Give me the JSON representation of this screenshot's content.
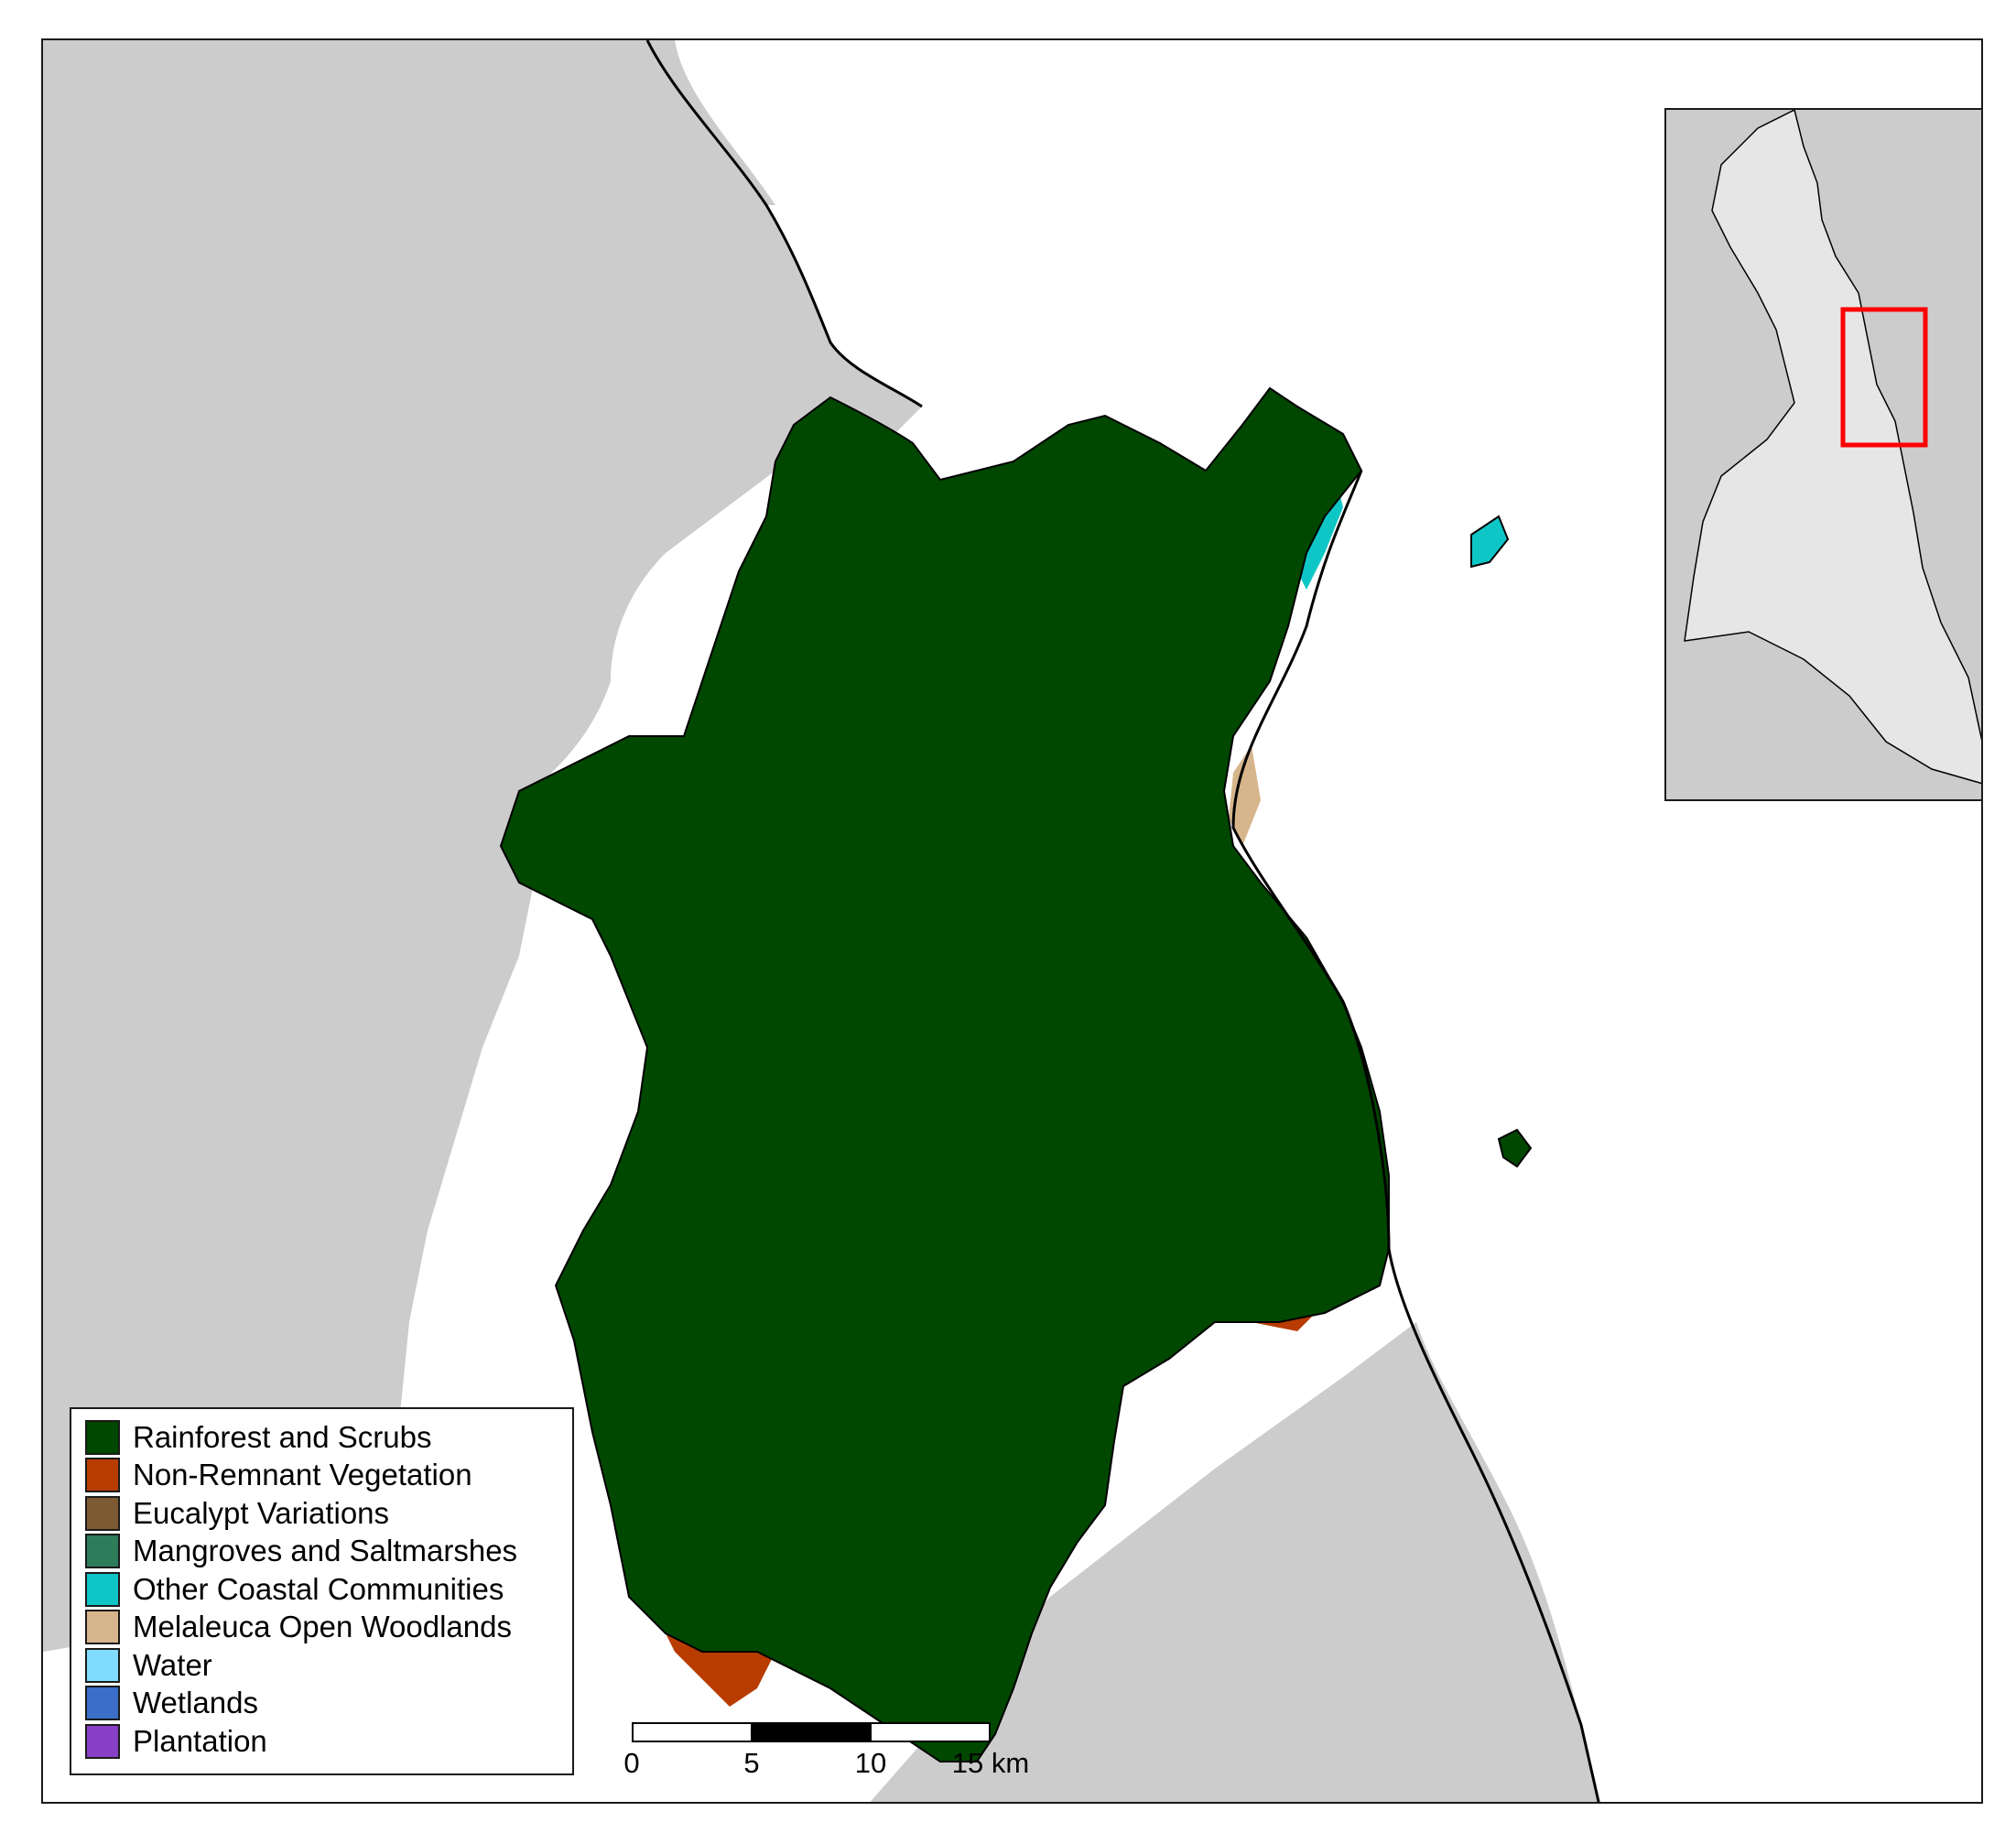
{
  "legend": {
    "items": [
      {
        "label": "Rainforest and Scrubs",
        "color": "#004700"
      },
      {
        "label": "Non-Remnant Vegetation",
        "color": "#b83c00"
      },
      {
        "label": "Eucalypt Variations",
        "color": "#7d5a32"
      },
      {
        "label": "Mangroves and Saltmarshes",
        "color": "#2e7d5a"
      },
      {
        "label": "Other Coastal Communities",
        "color": "#0fc6c6"
      },
      {
        "label": "Melaleuca Open Woodlands",
        "color": "#d6b58c"
      },
      {
        "label": "Water",
        "color": "#7fdcff"
      },
      {
        "label": "Wetlands",
        "color": "#3a6ec8"
      },
      {
        "label": "Plantation",
        "color": "#8a3fc8"
      }
    ]
  },
  "scale_bar": {
    "ticks": [
      "0",
      "5",
      "10",
      "15 km"
    ],
    "segment_colors": [
      "#ffffff",
      "#000000",
      "#ffffff"
    ]
  },
  "map": {
    "land_color": "#cccccc",
    "sea_color": "#ffffff",
    "inset_highlight_color": "#ff0000",
    "inset_catchment_color": "#e6e6e6"
  }
}
